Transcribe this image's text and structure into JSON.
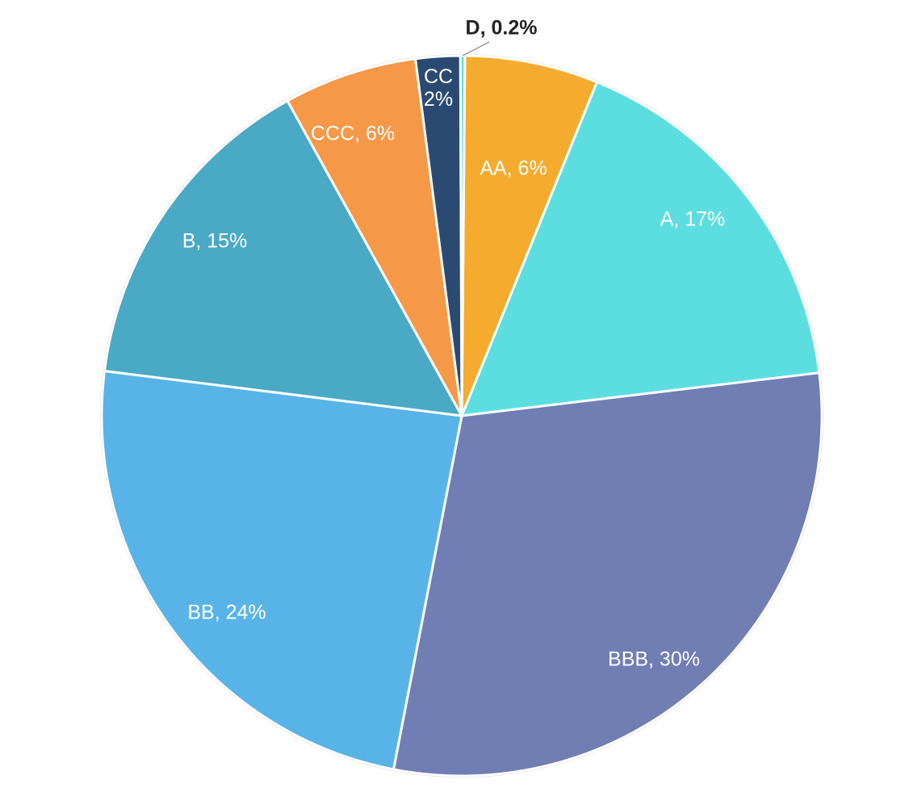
{
  "chart_data": {
    "type": "pie",
    "title": "",
    "slices": [
      {
        "label": "AA",
        "value": 6,
        "display": "AA, 6%",
        "color": "#F5AB2D"
      },
      {
        "label": "A",
        "value": 17,
        "display": "A, 17%",
        "color": "#5CDEE0"
      },
      {
        "label": "BBB",
        "value": 30,
        "display": "BBB, 30%",
        "color": "#717EB3"
      },
      {
        "label": "BB",
        "value": 24,
        "display": "BB, 24%",
        "color": "#58B4E8"
      },
      {
        "label": "B",
        "value": 15,
        "display": "B, 15%",
        "color": "#4AA9C4"
      },
      {
        "label": "CCC",
        "value": 6,
        "display": "CCC, 6%",
        "color": "#F59848"
      },
      {
        "label": "CC",
        "value": 2,
        "display_lines": [
          "CC",
          "2%"
        ],
        "color": "#2B4A72"
      },
      {
        "label": "D",
        "value": 0.2,
        "display": "D, 0.2%",
        "color": "#5CDEE0"
      }
    ],
    "legend": "none"
  }
}
